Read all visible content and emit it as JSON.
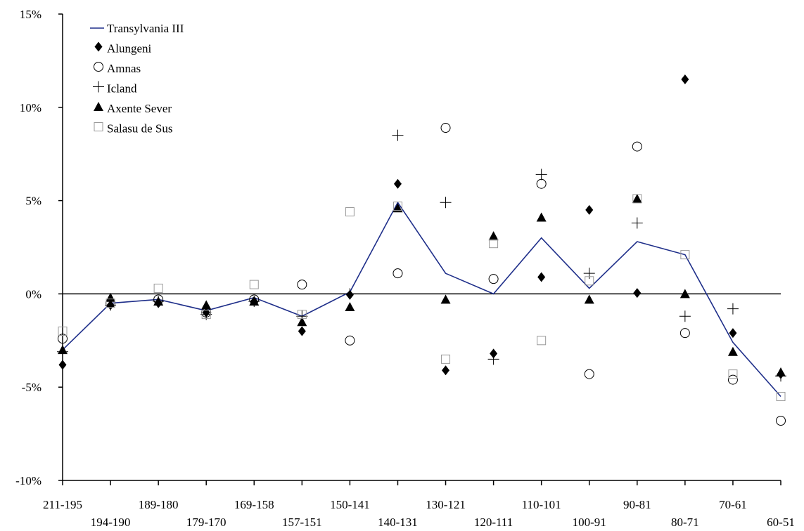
{
  "chart_data": {
    "type": "line",
    "categories": [
      "211-195",
      "194-190",
      "189-180",
      "179-170",
      "169-158",
      "157-151",
      "150-141",
      "140-131",
      "130-121",
      "120-111",
      "110-101",
      "100-91",
      "90-81",
      "80-71",
      "70-61",
      "60-51"
    ],
    "ylim": [
      -10,
      15
    ],
    "yticks": [
      -10,
      -5,
      0,
      5,
      10,
      15
    ],
    "ytick_labels": [
      "-10%",
      "-5%",
      "0%",
      "5%",
      "10%",
      "15%"
    ],
    "grid": false,
    "legend_position": "top-left",
    "series": [
      {
        "name": "Transylvania III",
        "style": "line",
        "color": "#1f2f8a",
        "values": [
          -3.0,
          -0.5,
          -0.3,
          -0.9,
          -0.2,
          -1.2,
          0.1,
          4.9,
          1.1,
          0.0,
          3.0,
          0.3,
          2.8,
          2.1,
          -2.6,
          -5.5
        ]
      },
      {
        "name": "Alungeni",
        "style": "marker",
        "marker": "diamond",
        "values": [
          -3.8,
          -0.6,
          -0.5,
          -1.0,
          -0.4,
          -2.0,
          -0.05,
          5.9,
          -4.1,
          -3.2,
          0.9,
          4.5,
          0.05,
          11.5,
          -2.1,
          -4.3
        ]
      },
      {
        "name": "Amnas",
        "style": "marker",
        "marker": "circle",
        "values": [
          -2.4,
          -0.5,
          -0.3,
          -1.0,
          -0.3,
          0.5,
          -2.5,
          1.1,
          8.9,
          0.8,
          5.9,
          -4.3,
          7.9,
          -2.1,
          -4.6,
          -6.8
        ]
      },
      {
        "name": "Icland",
        "style": "marker",
        "marker": "plus",
        "values": [
          -3.1,
          -0.6,
          -0.4,
          -1.1,
          -0.4,
          -1.2,
          0.0,
          8.5,
          4.9,
          -3.5,
          6.4,
          1.1,
          3.8,
          -1.2,
          -0.8,
          -4.4
        ]
      },
      {
        "name": "Axente Sever",
        "style": "marker",
        "marker": "triangle",
        "values": [
          -3.0,
          -0.2,
          -0.4,
          -0.6,
          -0.4,
          -1.5,
          -0.7,
          4.6,
          -0.3,
          3.1,
          4.1,
          -0.3,
          5.1,
          0.0,
          -3.1,
          -4.2
        ]
      },
      {
        "name": "Salasu de Sus",
        "style": "marker",
        "marker": "square",
        "values": [
          -2.0,
          -0.5,
          0.3,
          -1.1,
          0.5,
          -1.1,
          4.4,
          4.7,
          -3.5,
          2.7,
          -2.5,
          0.7,
          5.1,
          2.1,
          -4.3,
          -5.5
        ]
      }
    ]
  }
}
